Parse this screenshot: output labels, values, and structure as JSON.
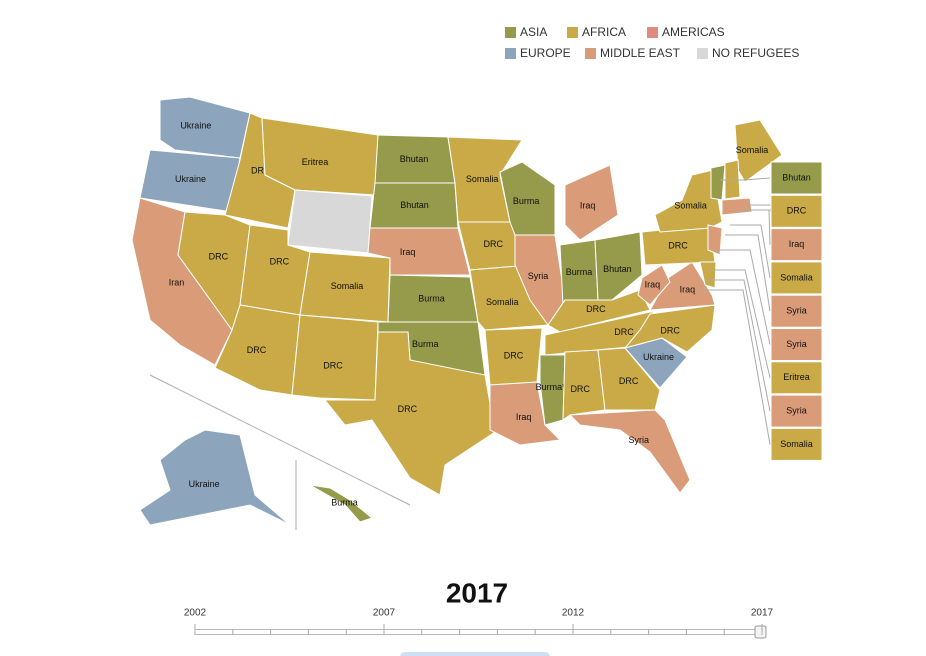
{
  "legend": [
    {
      "label": "ASIA",
      "color": "#959b4a"
    },
    {
      "label": "AFRICA",
      "color": "#c9aa47"
    },
    {
      "label": "AMERICAS",
      "color": "#dd8c7d"
    },
    {
      "label": "EUROPE",
      "color": "#8ca5bc"
    },
    {
      "label": "MIDDLE EAST",
      "color": "#d99b78"
    },
    {
      "label": "NO REFUGEES",
      "color": "#d8d8d8"
    }
  ],
  "states": [
    {
      "label": "Ukraine",
      "color": "#8ca5bc"
    },
    {
      "label": "Ukraine",
      "color": "#8ca5bc"
    },
    {
      "label": "Iran",
      "color": "#d99b78"
    },
    {
      "label": "DRC",
      "color": "#c9aa47"
    },
    {
      "label": "DRC",
      "color": "#c9aa47"
    },
    {
      "label": "Eritrea",
      "color": "#c9aa47"
    },
    {
      "color": "#d8d8d8"
    },
    {
      "label": "DRC",
      "color": "#c9aa47"
    },
    {
      "label": "DRC",
      "color": "#c9aa47"
    },
    {
      "label": "Somalia",
      "color": "#c9aa47"
    },
    {
      "label": "DRC",
      "color": "#c9aa47"
    },
    {
      "label": "Bhutan",
      "color": "#959b4a"
    },
    {
      "label": "Bhutan",
      "color": "#959b4a"
    },
    {
      "label": "Iraq",
      "color": "#d99b78"
    },
    {
      "label": "Burma",
      "color": "#959b4a"
    },
    {
      "label": "Burma",
      "color": "#959b4a"
    },
    {
      "label": "DRC",
      "color": "#c9aa47"
    },
    {
      "label": "Somalia",
      "color": "#c9aa47"
    },
    {
      "label": "DRC",
      "color": "#c9aa47"
    },
    {
      "label": "Somalia",
      "color": "#c9aa47"
    },
    {
      "label": "DRC",
      "color": "#c9aa47"
    },
    {
      "label": "Iraq",
      "color": "#d99b78"
    },
    {
      "label": "Burma",
      "color": "#959b4a"
    },
    {
      "label": "Syria",
      "color": "#d99b78"
    },
    {
      "label": "Iraq",
      "color": "#d99b78"
    },
    {
      "label": "Burma",
      "color": "#959b4a"
    },
    {
      "label": "Bhutan",
      "color": "#959b4a"
    },
    {
      "label": "DRC",
      "color": "#c9aa47"
    },
    {
      "label": "DRC",
      "color": "#c9aa47"
    },
    {
      "label": "Burma*",
      "color": "#959b4a"
    },
    {
      "label": "DRC",
      "color": "#c9aa47"
    },
    {
      "label": "DRC",
      "color": "#c9aa47"
    },
    {
      "label": "Syria",
      "color": "#d99b78"
    },
    {
      "label": "Ukraine",
      "color": "#8ca5bc"
    },
    {
      "label": "DRC",
      "color": "#c9aa47"
    },
    {
      "label": "Iraq",
      "color": "#d99b78"
    },
    {
      "label": "Iraq",
      "color": "#d99b78"
    },
    {
      "label": "DRC",
      "color": "#c9aa47"
    },
    {
      "label": "Somalia",
      "color": "#c9aa47"
    },
    {
      "label": "Somalia",
      "color": "#c9aa47"
    },
    {
      "label": "Ukraine",
      "color": "#8ca5bc"
    },
    {
      "label": "Burma",
      "color": "#959b4a"
    },
    {
      "color": "#959b4a"
    },
    {
      "color": "#c9aa47"
    },
    {
      "color": "#d99b78"
    },
    {
      "color": "#d99b78"
    },
    {
      "color": "#c9aa47"
    }
  ],
  "side_boxes": [
    {
      "label": "Bhutan",
      "color": "#959b4a"
    },
    {
      "label": "DRC",
      "color": "#c9aa47"
    },
    {
      "label": "Iraq",
      "color": "#d99b78"
    },
    {
      "label": "Somalia",
      "color": "#c9aa47"
    },
    {
      "label": "Syria",
      "color": "#d99b78"
    },
    {
      "label": "Syria",
      "color": "#d99b78"
    },
    {
      "label": "Eritrea",
      "color": "#c9aa47"
    },
    {
      "label": "Syria",
      "color": "#d99b78"
    },
    {
      "label": "Somalia",
      "color": "#c9aa47"
    }
  ],
  "year": "2017",
  "timeline": {
    "labels": [
      "2002",
      "2007",
      "2012",
      "2017"
    ]
  }
}
